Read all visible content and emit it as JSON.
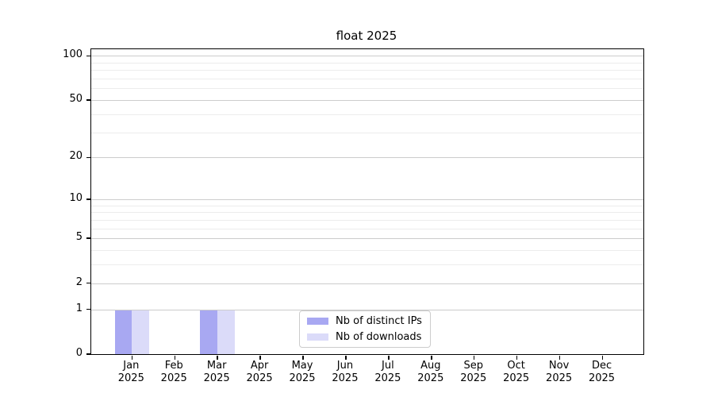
{
  "chart_data": {
    "type": "bar",
    "title": "float 2025",
    "year_label": "2025",
    "categories": [
      "Jan",
      "Feb",
      "Mar",
      "Apr",
      "May",
      "Jun",
      "Jul",
      "Aug",
      "Sep",
      "Oct",
      "Nov",
      "Dec"
    ],
    "series": [
      {
        "name": "Nb of distinct IPs",
        "color": "#a8a8f2",
        "values": [
          1,
          0,
          1,
          0,
          0,
          0,
          0,
          0,
          0,
          0,
          0,
          0
        ]
      },
      {
        "name": "Nb of downloads",
        "color": "#dbdbf9",
        "values": [
          1,
          0,
          1,
          0,
          0,
          0,
          0,
          0,
          0,
          0,
          0,
          0
        ]
      }
    ],
    "xlabel": "",
    "ylabel": "",
    "y_axis": {
      "scale": "log1p",
      "tick_values": [
        0,
        1,
        2,
        5,
        10,
        20,
        50,
        100
      ],
      "minor_gridline_values": [
        3,
        4,
        6,
        7,
        8,
        9,
        30,
        40,
        60,
        70,
        80,
        90
      ],
      "ylim": [
        0,
        111
      ]
    },
    "legend_position": "lower center",
    "grid": true,
    "colors": {
      "major_grid": "#cccccc",
      "minor_grid": "#ececec",
      "axis": "#000000",
      "background": "#ffffff"
    }
  }
}
